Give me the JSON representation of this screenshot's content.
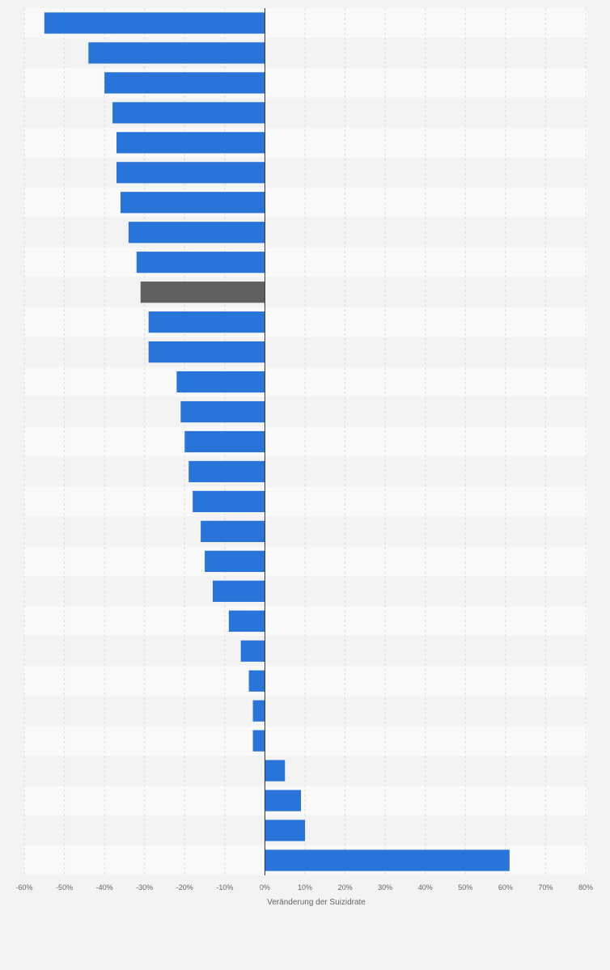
{
  "chart_data": {
    "type": "bar",
    "orientation": "horizontal",
    "title": "",
    "xlabel": "Veränderung der Suizidrate",
    "ylabel": "",
    "xlim": [
      -60,
      80
    ],
    "xticks": [
      -60,
      -50,
      -40,
      -30,
      -20,
      -10,
      0,
      10,
      20,
      30,
      40,
      50,
      60,
      70,
      80
    ],
    "tick_labels": [
      "-60%",
      "-50%",
      "-40%",
      "-30%",
      "-20%",
      "-10%",
      "0%",
      "10%",
      "20%",
      "30%",
      "40%",
      "50%",
      "60%",
      "70%",
      "80%"
    ],
    "grid": true,
    "legend": "none",
    "values": [
      -55,
      -44,
      -40,
      -38,
      -37,
      -37,
      -36,
      -34,
      -32,
      -31,
      -29,
      -29,
      -22,
      -21,
      -20,
      -19,
      -18,
      -16,
      -15,
      -13,
      -9,
      -6,
      -4,
      -3,
      -3,
      5,
      9,
      10,
      61
    ],
    "highlight_index": 9,
    "colors": {
      "bar": "#2874d9",
      "highlight": "#606060",
      "band_light": "#f9f9f9",
      "band_dark": "#f3f3f3",
      "grid": "#dcdcdc",
      "zero_line": "#333333",
      "text": "#666666"
    }
  }
}
